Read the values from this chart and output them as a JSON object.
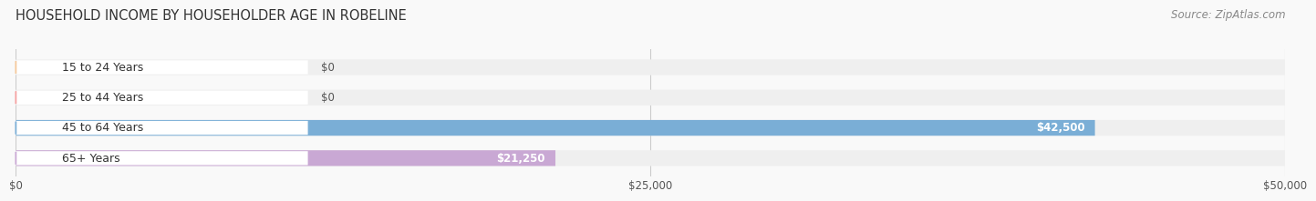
{
  "title": "HOUSEHOLD INCOME BY HOUSEHOLDER AGE IN ROBELINE",
  "source": "Source: ZipAtlas.com",
  "categories": [
    "15 to 24 Years",
    "25 to 44 Years",
    "45 to 64 Years",
    "65+ Years"
  ],
  "values": [
    0,
    0,
    42500,
    21250
  ],
  "bar_colors": [
    "#f5c89a",
    "#f5a0a0",
    "#7aaed6",
    "#c9a8d4"
  ],
  "bar_bg_color": "#efefef",
  "xlim": [
    0,
    50000
  ],
  "xticks": [
    0,
    25000,
    50000
  ],
  "xtick_labels": [
    "$0",
    "$25,000",
    "$50,000"
  ],
  "value_labels": [
    "$0",
    "$0",
    "$42,500",
    "$21,250"
  ],
  "title_fontsize": 10.5,
  "source_fontsize": 8.5,
  "bar_height": 0.52,
  "background_color": "#f9f9f9"
}
